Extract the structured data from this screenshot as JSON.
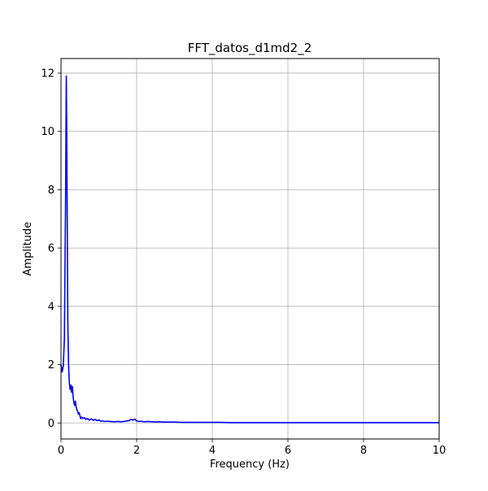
{
  "chart_data": {
    "type": "line",
    "title": "FFT_datos_d1md2_2",
    "xlabel": "Frequency (Hz)",
    "ylabel": "Amplitude",
    "xlim": [
      0,
      10
    ],
    "ylim": [
      -0.55,
      12.5
    ],
    "xticks": [
      0,
      2,
      4,
      6,
      8,
      10
    ],
    "yticks": [
      0,
      2,
      4,
      6,
      8,
      10,
      12
    ],
    "grid": true,
    "line_color": "#0000ff",
    "series": [
      {
        "x": [
          0.0,
          0.03,
          0.06,
          0.09,
          0.12,
          0.14,
          0.16,
          0.18,
          0.2,
          0.22,
          0.24,
          0.26,
          0.28,
          0.3,
          0.32,
          0.34,
          0.36,
          0.38,
          0.4,
          0.42,
          0.44,
          0.46,
          0.48,
          0.5,
          0.52,
          0.55,
          0.58,
          0.62,
          0.66,
          0.7,
          0.75,
          0.8,
          0.85,
          0.9,
          0.95,
          1.0,
          1.05,
          1.1,
          1.15,
          1.2,
          1.3,
          1.4,
          1.5,
          1.6,
          1.7,
          1.8,
          1.85,
          1.9,
          1.95,
          2.0,
          2.05,
          2.1,
          2.2,
          2.3,
          2.4,
          2.5,
          2.6,
          2.7,
          2.8,
          3.0,
          3.2,
          3.5,
          3.8,
          4.0,
          4.2,
          4.5,
          5.0,
          5.5,
          6.0,
          6.5,
          7.0,
          7.5,
          8.0,
          8.5,
          9.0,
          9.5,
          10.0
        ],
        "y": [
          2.0,
          1.75,
          1.95,
          2.9,
          7.5,
          11.9,
          8.0,
          3.5,
          2.0,
          1.4,
          1.15,
          1.3,
          1.05,
          1.25,
          0.9,
          0.7,
          0.6,
          0.75,
          0.55,
          0.45,
          0.4,
          0.3,
          0.35,
          0.25,
          0.15,
          0.2,
          0.15,
          0.18,
          0.12,
          0.15,
          0.1,
          0.14,
          0.09,
          0.12,
          0.08,
          0.1,
          0.06,
          0.07,
          0.05,
          0.06,
          0.05,
          0.04,
          0.05,
          0.04,
          0.06,
          0.08,
          0.12,
          0.1,
          0.13,
          0.07,
          0.05,
          0.06,
          0.04,
          0.05,
          0.04,
          0.03,
          0.04,
          0.03,
          0.03,
          0.03,
          0.02,
          0.02,
          0.02,
          0.02,
          0.02,
          0.01,
          0.01,
          0.01,
          0.01,
          0.01,
          0.01,
          0.01,
          0.01,
          0.01,
          0.01,
          0.01,
          0.01
        ]
      }
    ]
  }
}
